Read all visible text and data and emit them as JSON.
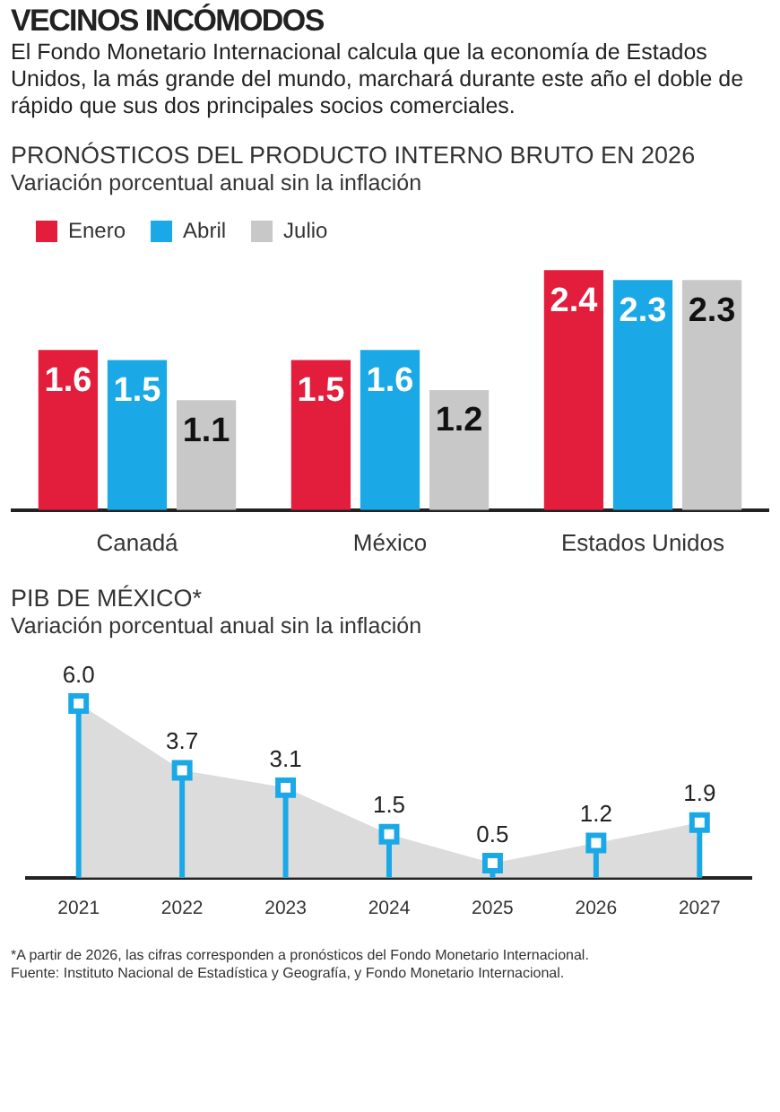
{
  "chart_data": [
    {
      "type": "other",
      "title": "VECINOS INCÓMODOS",
      "subtitle": "El Fondo Monetario Internacional calcula que la economía de Estados Unidos, la más grande del mundo, marchará durante este año el doble de rápido que sus dos principales socios comerciales."
    },
    {
      "type": "bar",
      "title": "PRONÓSTICOS DEL PRODUCTO INTERNO BRUTO EN 2026",
      "subtitle": "Variación porcentual anual sin la inflación",
      "categories": [
        "Canadá",
        "México",
        "Estados Unidos"
      ],
      "series": [
        {
          "name": "Enero",
          "color": "#e31d3c",
          "values": [
            1.6,
            1.5,
            2.4
          ]
        },
        {
          "name": "Abril",
          "color": "#1aa9e6",
          "values": [
            1.5,
            1.6,
            2.3
          ]
        },
        {
          "name": "Julio",
          "color": "#c8c8c8",
          "values": [
            1.1,
            1.2,
            2.3
          ]
        }
      ],
      "data_labels": true,
      "legend": "top left",
      "tick_labels": "x",
      "grid": false
    },
    {
      "type": "area",
      "title": "PIB DE MÉXICO*",
      "subtitle": "Variación porcentual anual sin la inflación",
      "categories": [
        "2021",
        "2022",
        "2023",
        "2024",
        "2025",
        "2026",
        "2027"
      ],
      "series": [
        {
          "type": "area",
          "color": "#dcdcdc",
          "values": [
            6.0,
            3.7,
            3.1,
            1.5,
            0.5,
            1.2,
            1.9
          ],
          "value_labels": [
            null,
            null,
            null,
            null,
            null,
            null,
            null
          ]
        },
        {
          "type": "lollipop",
          "color": "#1aa9e6",
          "values": [
            6.0,
            3.7,
            3.1,
            1.5,
            0.5,
            1.2,
            1.9
          ],
          "value_labels": [
            "6.0",
            "3.7",
            "3.1",
            "1.5",
            "0.5",
            "1.2",
            "1.9"
          ]
        }
      ],
      "marker": "square",
      "tick_labels": "x",
      "grid": false,
      "annotations": [
        "*A partir de 2026, las cifras corresponden a pronósticos del Fondo Monetario Internacional.",
        "Fuente: Instituto Nacional de Estadística y Geografía, y Fondo Monetario Internacional."
      ]
    }
  ]
}
